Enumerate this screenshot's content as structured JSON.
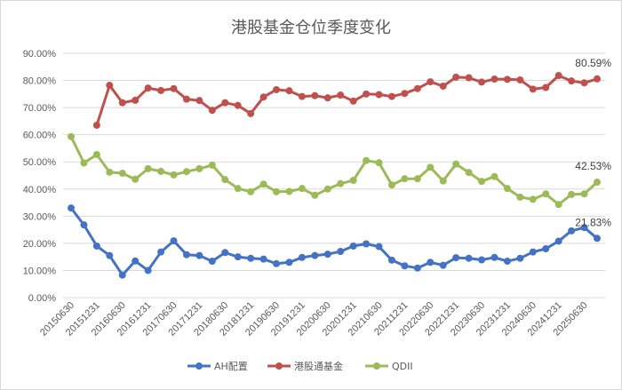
{
  "chart_data": {
    "type": "line",
    "title": "港股基金仓位季度变化",
    "xlabel": "",
    "ylabel": "",
    "ylim": [
      0,
      90
    ],
    "y_ticks": [
      "0.00%",
      "10.00%",
      "20.00%",
      "30.00%",
      "40.00%",
      "50.00%",
      "60.00%",
      "70.00%",
      "80.00%",
      "90.00%"
    ],
    "x_tick_labels": [
      "20150630",
      "20151231",
      "20160630",
      "20161231",
      "20170630",
      "20171231",
      "20180630",
      "20181231",
      "20190630",
      "20191231",
      "20200630",
      "20201231",
      "20210630",
      "20211231",
      "20220630",
      "20221231",
      "20230630",
      "20231231",
      "20240630",
      "20241231",
      "20250630"
    ],
    "grid": true,
    "legend_position": "bottom",
    "categories": [
      "20150630",
      "20150930",
      "20151231",
      "20160331",
      "20160630",
      "20160930",
      "20161231",
      "20170331",
      "20170630",
      "20170930",
      "20171231",
      "20180331",
      "20180630",
      "20180930",
      "20181231",
      "20190331",
      "20190630",
      "20190930",
      "20191231",
      "20200331",
      "20200630",
      "20200930",
      "20201231",
      "20210331",
      "20210630",
      "20210930",
      "20211231",
      "20220331",
      "20220630",
      "20220930",
      "20221231",
      "20230331",
      "20230630",
      "20230930",
      "20231231",
      "20240331",
      "20240630",
      "20240930",
      "20241231",
      "20250331",
      "20250630",
      "20250930"
    ],
    "series": [
      {
        "name": "AH配置",
        "color": "#4472c4",
        "values": [
          33.0,
          26.8,
          19.0,
          15.5,
          8.3,
          13.5,
          10.0,
          16.8,
          20.9,
          15.8,
          15.5,
          13.4,
          16.6,
          15.0,
          14.5,
          14.2,
          12.5,
          13.0,
          14.8,
          15.5,
          16.0,
          17.0,
          19.0,
          19.8,
          18.8,
          13.8,
          11.7,
          10.9,
          13.0,
          11.9,
          14.7,
          14.5,
          13.9,
          14.8,
          13.4,
          14.5,
          16.8,
          18.0,
          20.8,
          24.6,
          25.8,
          21.83
        ]
      },
      {
        "name": "港股通基金",
        "color": "#c0504d",
        "values": [
          null,
          null,
          63.5,
          78.2,
          71.8,
          72.7,
          77.2,
          76.3,
          77.0,
          73.1,
          72.6,
          69.0,
          71.8,
          70.8,
          67.8,
          73.9,
          76.6,
          76.2,
          74.1,
          74.4,
          73.6,
          74.6,
          72.4,
          75.0,
          74.8,
          74.1,
          75.2,
          77.0,
          79.5,
          77.9,
          81.2,
          81.0,
          79.4,
          80.5,
          80.4,
          80.2,
          76.8,
          77.4,
          81.8,
          79.8,
          79.1,
          80.59
        ]
      },
      {
        "name": "QDII",
        "color": "#9bbb59",
        "values": [
          59.3,
          49.6,
          52.7,
          46.2,
          45.8,
          43.6,
          47.5,
          46.5,
          45.2,
          46.4,
          47.5,
          48.8,
          43.5,
          40.2,
          39.0,
          41.8,
          39.0,
          39.1,
          40.2,
          37.7,
          40.0,
          42.0,
          43.2,
          50.5,
          49.7,
          41.5,
          43.8,
          43.8,
          48.0,
          43.0,
          49.2,
          46.1,
          42.8,
          44.6,
          40.2,
          37.0,
          36.2,
          38.2,
          34.3,
          38.0,
          38.2,
          42.53
        ]
      }
    ],
    "data_labels": [
      {
        "series": "港股通基金",
        "text": "80.59%"
      },
      {
        "series": "QDII",
        "text": "42.53%"
      },
      {
        "series": "AH配置",
        "text": "21.83%"
      }
    ]
  }
}
